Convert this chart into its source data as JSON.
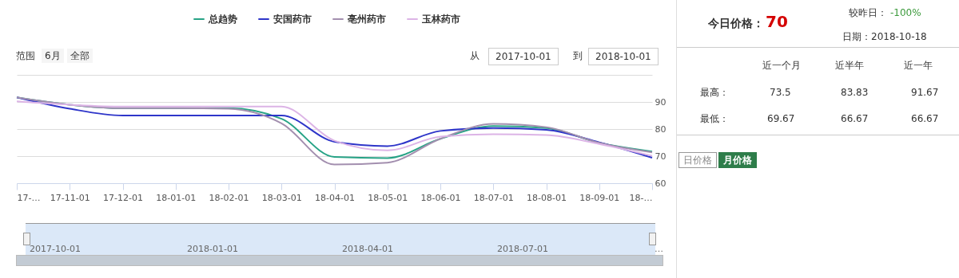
{
  "chart_data": {
    "type": "line",
    "categories": [
      "17-…",
      "17-11-01",
      "17-12-01",
      "18-01-01",
      "18-02-01",
      "18-03-01",
      "18-04-01",
      "18-05-01",
      "18-06-01",
      "18-07-01",
      "18-08-01",
      "18-09-01",
      "18-…"
    ],
    "series": [
      {
        "name": "总趋势",
        "color": "#27a386",
        "values": [
          91.7,
          89,
          87.7,
          87.7,
          87.7,
          83.8,
          69.7,
          69.3,
          76.4,
          81.1,
          80.4,
          74.9,
          71.7
        ]
      },
      {
        "name": "安国药市",
        "color": "#2e35c9",
        "values": [
          91.7,
          87.5,
          85,
          85,
          85,
          85,
          75.3,
          73.7,
          79.3,
          80.4,
          79.7,
          75.1,
          69.4
        ]
      },
      {
        "name": "亳州药市",
        "color": "#a38faf",
        "values": [
          91.7,
          89,
          87.7,
          87.7,
          87.5,
          82.1,
          66.9,
          67.6,
          76.4,
          81.9,
          80.7,
          74.9,
          71.4
        ]
      },
      {
        "name": "玉林药市",
        "color": "#dcb4e6",
        "values": [
          90.2,
          89,
          88.3,
          88.3,
          88.3,
          88.3,
          75.7,
          72.1,
          77.2,
          78.1,
          77.8,
          74.5,
          70.1
        ]
      }
    ],
    "ylim": [
      60,
      100
    ],
    "yticks": [
      60,
      70,
      80,
      90,
      {
        "value": 100,
        "label": null
      }
    ],
    "grid": "y",
    "legend": "top",
    "marker": "none",
    "line_style": "solid",
    "annotations": [
      "范围",
      "6月",
      "全部",
      "从",
      "2017-10-01",
      "到",
      "2018-10-01",
      "今日价格：",
      "70",
      "较昨日：",
      "-100%",
      "日期：2018-10-18",
      "近一个月",
      "近半年",
      "近一年",
      "最高：",
      "73.5",
      "83.83",
      "91.67",
      "最低：",
      "69.67",
      "66.67",
      "66.67",
      "日价格",
      "月价格",
      "2017-10-01",
      "2018-01-01",
      "2018-04-01",
      "2018-07-01",
      "…"
    ]
  }
}
